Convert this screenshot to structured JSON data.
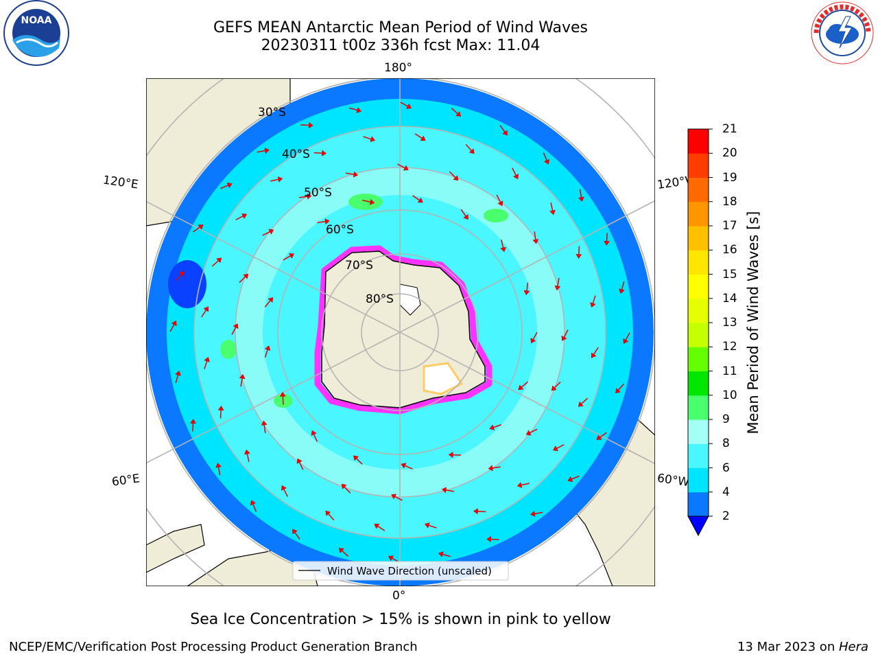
{
  "header": {
    "title_line1": "GEFS MEAN Antarctic Mean Period of Wind Waves",
    "title_line2": "20230311 t00z 336h fcst   Max: 11.04"
  },
  "logos": {
    "left": "NOAA",
    "right": "NATIONAL WEATHER SERVICE"
  },
  "map": {
    "projection": "south-polar-stereographic",
    "lon_labels": [
      "180°",
      "120°E",
      "120°W",
      "60°E",
      "60°W",
      "0°"
    ],
    "lat_labels": [
      "30°S",
      "40°S",
      "50°S",
      "60°S",
      "70°S",
      "80°S"
    ],
    "legend": "Wind Wave Direction (unscaled)",
    "colors": {
      "land": "#efecd8",
      "ocean_2_4": "#0a78ff",
      "ocean_4_6": "#00e5ff",
      "ocean_6_8": "#4af6ff",
      "ocean_8_9": "#a4fff4",
      "ocean_9_10": "#49ff6e",
      "arrows": "#ff0000",
      "sea_ice": "#ff33ff",
      "grid": "#b4b4b4"
    }
  },
  "colorbar": {
    "label": "Mean Period of Wind Waves [s]",
    "ticks": [
      "21",
      "20",
      "19",
      "18",
      "17",
      "16",
      "15",
      "14",
      "13",
      "12",
      "11",
      "10",
      "9",
      "8",
      "6",
      "4",
      "2"
    ],
    "colors": [
      "#0a78ff",
      "#00e5ff",
      "#4af6ff",
      "#a4fff4",
      "#49ff6e",
      "#00e600",
      "#64ff00",
      "#c6ff00",
      "#e6ff00",
      "#ffff00",
      "#ffe600",
      "#ffc000",
      "#ff9600",
      "#ff6a00",
      "#ff3c00",
      "#ff0000"
    ],
    "extend_color": "#0000ff"
  },
  "caption": "Sea Ice Concentration > 15% is shown in pink to yellow",
  "footer": {
    "left": "NCEP/EMC/Verification Post Processing Product Generation Branch",
    "right_date": "13 Mar 2023 on ",
    "right_machine": "Hera"
  }
}
